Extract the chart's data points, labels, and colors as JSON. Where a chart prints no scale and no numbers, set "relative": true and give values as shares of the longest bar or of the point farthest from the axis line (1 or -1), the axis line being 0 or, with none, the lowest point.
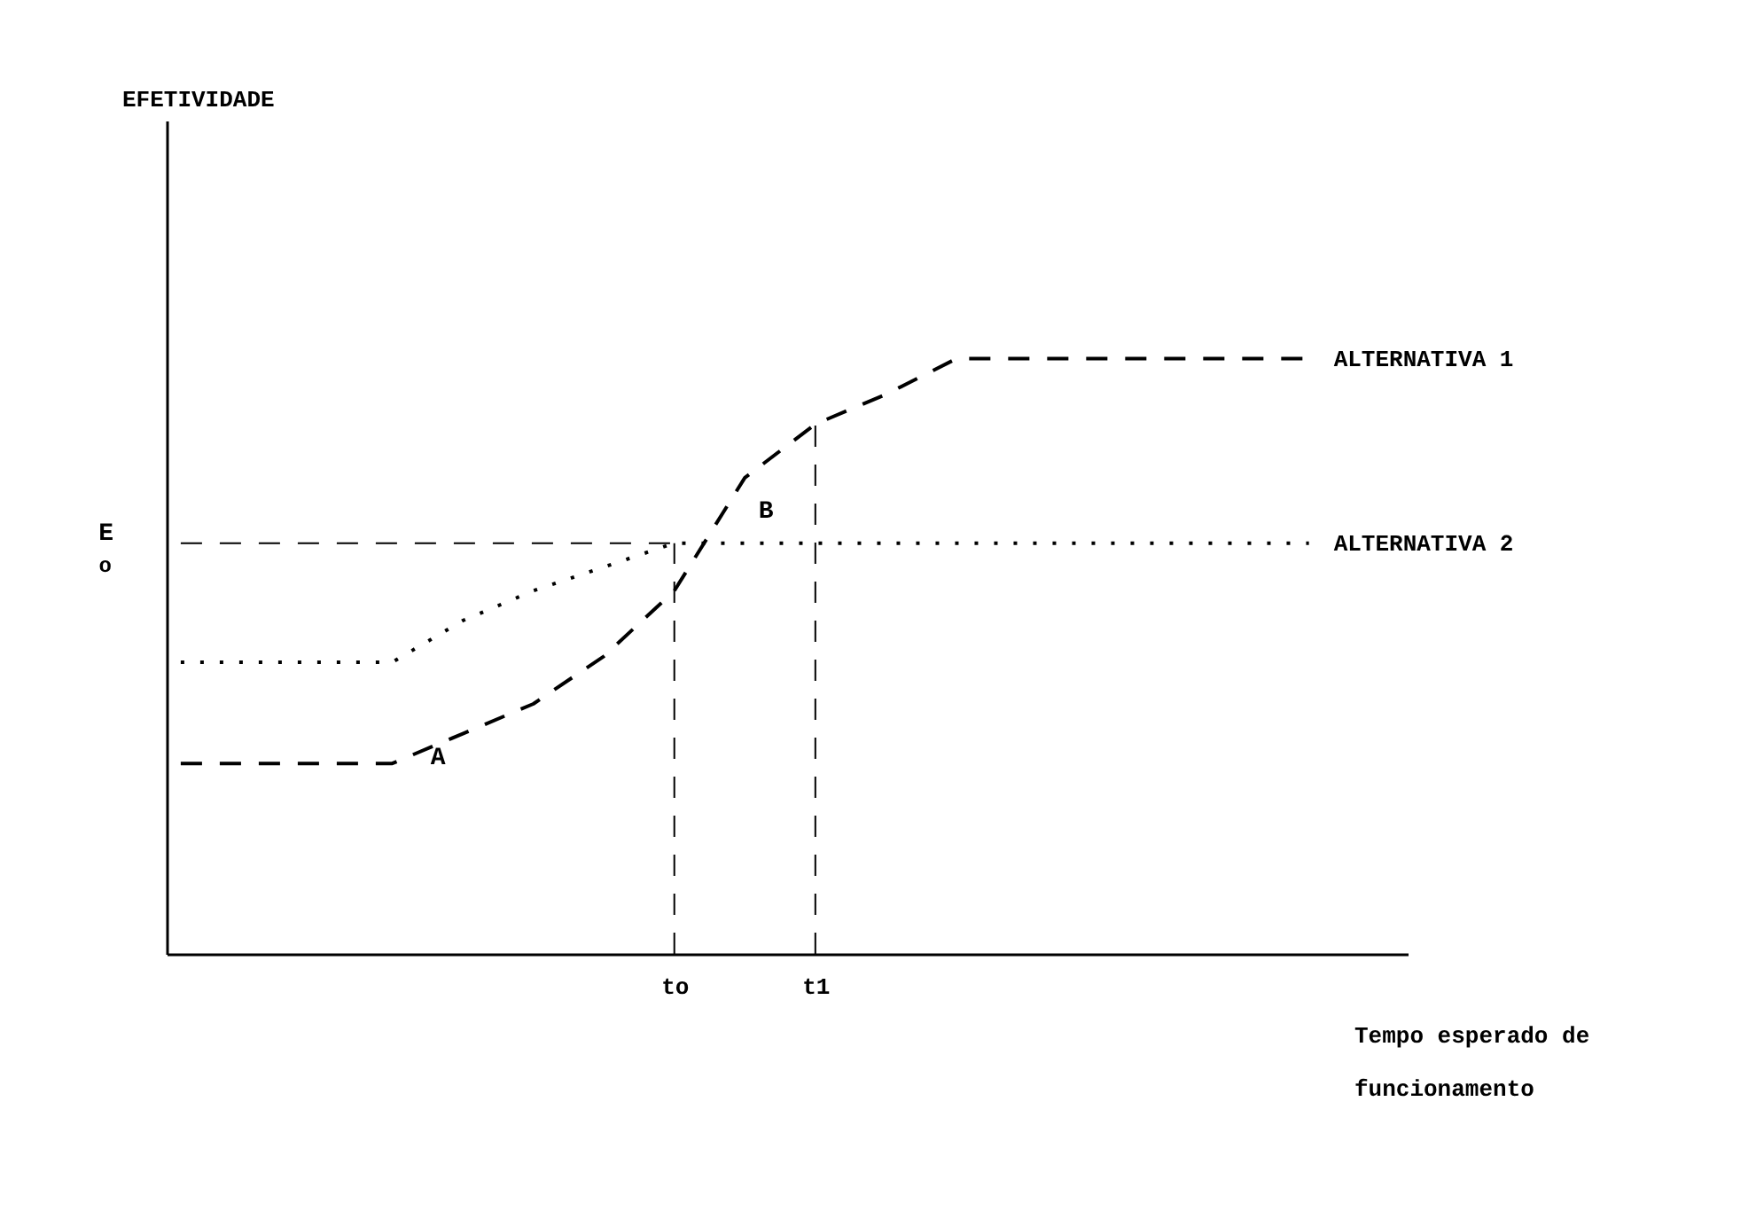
{
  "chart_data": {
    "type": "line",
    "relative": true,
    "xlabel": "Tempo esperado de funcionamento",
    "categories": [
      null,
      null,
      null,
      null,
      null,
      null,
      null,
      "to",
      null,
      "t1",
      null,
      null,
      null,
      null,
      null,
      null,
      null
    ],
    "series": [
      {
        "name": "ALTERNATIVA 1",
        "color": "#000000",
        "line_style": "dashed",
        "values": [
          0.32,
          0.32,
          0.32,
          0.32,
          0.37,
          0.42,
          0.5,
          0.61,
          0.8,
          0.89,
          0.94,
          1,
          1,
          1,
          1,
          1,
          1
        ]
      },
      {
        "name": "ALTERNATIVA 2",
        "color": "#000000",
        "line_style": "dotted",
        "values": [
          0.49,
          0.49,
          0.49,
          0.49,
          0.56,
          0.61,
          0.65,
          0.69,
          0.69,
          0.69,
          0.69,
          0.69,
          0.69,
          0.69,
          0.69,
          0.69,
          0.69
        ]
      }
    ],
    "ref_lines": [
      {
        "axis": "y",
        "value": 0.69,
        "label": "E$_{o}$",
        "line_style": "dashed"
      },
      {
        "axis": "x",
        "value": "to",
        "line_style": "dashed"
      },
      {
        "axis": "x",
        "value": "t1",
        "line_style": "dashed"
      }
    ],
    "annotations": [
      "EFETIVIDADE",
      "A",
      "B"
    ]
  }
}
